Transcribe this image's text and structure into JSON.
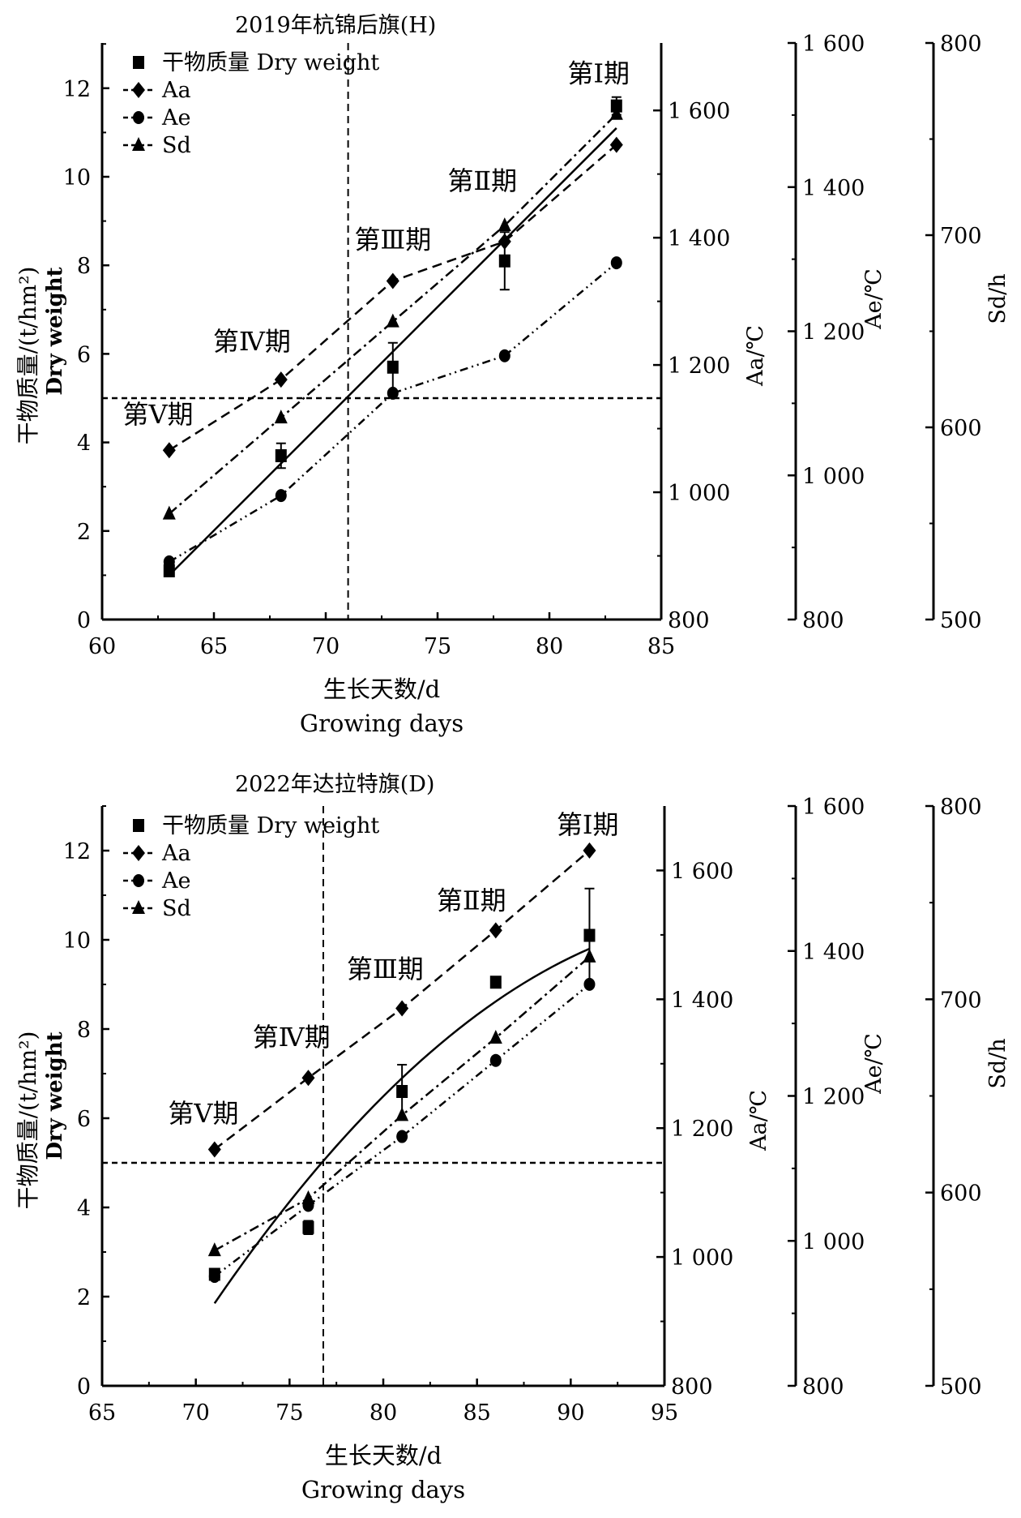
{
  "chart_data": [
    {
      "type": "line",
      "title": "2019年杭锦后旗(H)",
      "xlabel": "生长天数/d",
      "xlabel2": "Growing days",
      "ylabel": "干物质量/(t/hm²)",
      "ylabel2": "Dry weight",
      "xlim": [
        60,
        85
      ],
      "xticks": [
        60,
        65,
        70,
        75,
        80,
        85
      ],
      "ylim": [
        0,
        13
      ],
      "yticks": [
        0,
        2,
        4,
        6,
        8,
        10,
        12
      ],
      "x": [
        63,
        68,
        73,
        78,
        83
      ],
      "dry_weight": {
        "name": "干物质量 Dry weight",
        "values": [
          1.1,
          3.7,
          5.7,
          8.1,
          11.6
        ],
        "errors": [
          0.1,
          0.28,
          0.55,
          0.65,
          0.2
        ],
        "fit": [
          [
            63,
            1.0
          ],
          [
            83,
            11.1
          ]
        ],
        "fit_type": "linear"
      },
      "right_axes": [
        {
          "name": "Aa",
          "label": "Aa/℃",
          "lim": [
            800,
            1706
          ],
          "ticks": [
            800,
            1000,
            1200,
            1400,
            1600
          ],
          "tick_labels": [
            "800",
            "1 000",
            "1 200",
            "1 400",
            "1 600"
          ],
          "values": [
            1066,
            1177,
            1332,
            1394,
            1546
          ]
        },
        {
          "name": "Ae",
          "label": "Ae/℃",
          "lim": [
            800,
            1600
          ],
          "ticks": [
            800,
            1000,
            1200,
            1400,
            1600
          ],
          "tick_labels": [
            "800",
            "1 000",
            "1 200",
            "1 400",
            "1 600"
          ],
          "values": [
            880,
            972,
            1114,
            1166,
            1295
          ]
        },
        {
          "name": "Sd",
          "label": "Sd/h",
          "lim": [
            500,
            800
          ],
          "ticks": [
            500,
            600,
            700,
            800
          ],
          "tick_labels": [
            "500",
            "600",
            "700",
            "800"
          ],
          "values": [
            555,
            605,
            655,
            705,
            763
          ]
        }
      ],
      "threshold_y": 5,
      "threshold_x": 71,
      "legend": [
        "干物质量 Dry weight",
        "Aa",
        "Ae",
        "Sd"
      ],
      "legend_placement": "top-left",
      "phases": [
        {
          "label": "第Ⅰ期",
          "x": 82.2,
          "y": 12.35
        },
        {
          "label": "第Ⅱ期",
          "x": 77.0,
          "y": 9.93
        },
        {
          "label": "第Ⅲ期",
          "x": 73.0,
          "y": 8.6
        },
        {
          "label": "第Ⅳ期",
          "x": 66.7,
          "y": 6.3
        },
        {
          "label": "第Ⅴ期",
          "x": 62.5,
          "y": 4.65
        }
      ]
    },
    {
      "type": "line",
      "title": "2022年达拉特旗(D)",
      "xlabel": "生长天数/d",
      "xlabel2": "Growing days",
      "ylabel": "干物质量/(t/hm²)",
      "ylabel2": "Dry weight",
      "xlim": [
        65,
        95
      ],
      "xticks": [
        65,
        70,
        75,
        80,
        85,
        90,
        95
      ],
      "ylim": [
        0,
        13
      ],
      "yticks": [
        0,
        2,
        4,
        6,
        8,
        10,
        12
      ],
      "x": [
        71,
        76,
        81,
        86,
        91
      ],
      "dry_weight": {
        "name": "干物质量 Dry weight",
        "values": [
          2.5,
          3.55,
          6.6,
          9.05,
          10.1
        ],
        "errors": [
          0.1,
          0.15,
          0.6,
          0.1,
          1.05
        ],
        "fit": [
          [
            71,
            1.85
          ],
          [
            81,
            6.9
          ],
          [
            91,
            9.8
          ]
        ],
        "fit_type": "quadratic"
      },
      "right_axes": [
        {
          "name": "Aa",
          "label": "Aa/℃",
          "lim": [
            800,
            1700
          ],
          "ticks": [
            800,
            1000,
            1200,
            1400,
            1600
          ],
          "tick_labels": [
            "800",
            "1 000",
            "1 200",
            "1 400",
            "1 600"
          ],
          "values": [
            1167,
            1278,
            1386,
            1507,
            1631
          ]
        },
        {
          "name": "Ae",
          "label": "Ae/℃",
          "lim": [
            800,
            1600
          ],
          "ticks": [
            800,
            1000,
            1200,
            1400,
            1600
          ],
          "tick_labels": [
            "800",
            "1 000",
            "1 200",
            "1 400",
            "1 600"
          ],
          "values": [
            951,
            1049,
            1144,
            1249,
            1354
          ]
        },
        {
          "name": "Sd",
          "label": "Sd/h",
          "lim": [
            500,
            800
          ],
          "ticks": [
            500,
            600,
            700,
            800
          ],
          "tick_labels": [
            "500",
            "600",
            "700",
            "800"
          ],
          "values": [
            570,
            597,
            640,
            680,
            722
          ]
        }
      ],
      "threshold_y": 5,
      "threshold_x": 76.8,
      "legend": [
        "干物质量 Dry weight",
        "Aa",
        "Ae",
        "Sd"
      ],
      "legend_placement": "top-left",
      "phases": [
        {
          "label": "第Ⅰ期",
          "x": 90.9,
          "y": 12.6
        },
        {
          "label": "第Ⅱ期",
          "x": 84.7,
          "y": 10.9
        },
        {
          "label": "第Ⅲ期",
          "x": 80.1,
          "y": 9.36
        },
        {
          "label": "第Ⅳ期",
          "x": 75.1,
          "y": 7.84
        },
        {
          "label": "第Ⅴ期",
          "x": 70.4,
          "y": 6.13
        }
      ]
    }
  ]
}
